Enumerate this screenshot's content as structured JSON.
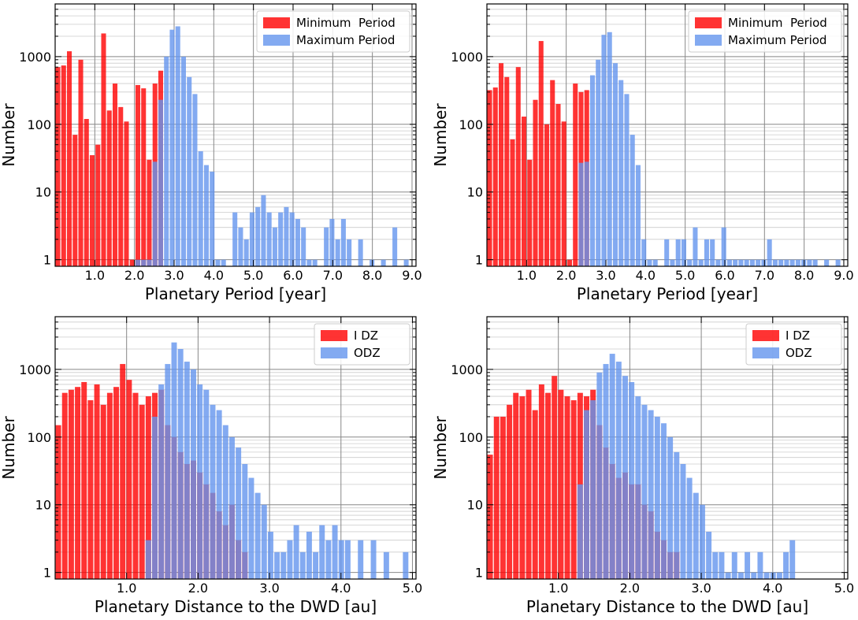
{
  "colors": {
    "red": "#ff0000",
    "blue": "#6495ed",
    "grid": "#888888",
    "minor_grid": "#cccccc"
  },
  "chart_data": [
    {
      "type": "bar",
      "scale": "log",
      "xlabel": "Planetary Period [year]",
      "ylabel": "Number",
      "xlim": [
        0,
        9.1
      ],
      "ylim": [
        0.8,
        6000
      ],
      "xticks": [
        "1.0",
        "2.0",
        "3.0",
        "4.0",
        "5.0",
        "6.0",
        "7.0",
        "8.0",
        "9.0"
      ],
      "yticks": [
        "1",
        "10",
        "100",
        "1000"
      ],
      "legend_position": "top-right",
      "series": [
        {
          "name": "Minimum  Period",
          "color": "red",
          "bin_width": 0.144,
          "x": [
            0.07,
            0.214,
            0.358,
            0.502,
            0.646,
            0.79,
            0.934,
            1.078,
            1.222,
            1.366,
            1.51,
            1.654,
            1.798,
            1.942,
            2.086,
            2.23,
            2.374,
            2.518,
            2.662
          ],
          "values": [
            700,
            740,
            1200,
            70,
            900,
            120,
            35,
            50,
            2200,
            160,
            400,
            180,
            110,
            1,
            380,
            340,
            30,
            400,
            620
          ]
        },
        {
          "name": "Maximum Period",
          "color": "blue",
          "bin_width": 0.144,
          "x": [
            2.086,
            2.23,
            2.374,
            2.518,
            2.662,
            2.806,
            2.95,
            3.094,
            3.238,
            3.382,
            3.526,
            3.67,
            3.814,
            3.958,
            4.102,
            4.246,
            4.534,
            4.678,
            4.822,
            4.966,
            5.11,
            5.254,
            5.398,
            5.542,
            5.686,
            5.83,
            5.974,
            6.118,
            6.262,
            6.406,
            6.55,
            6.838,
            6.982,
            7.126,
            7.27,
            7.414,
            7.702,
            7.99,
            8.278,
            8.566,
            8.854
          ],
          "values": [
            1,
            1,
            1,
            28,
            230,
            1000,
            2500,
            2800,
            1000,
            500,
            280,
            40,
            25,
            20,
            1,
            1,
            5,
            3,
            2,
            5,
            6,
            9,
            5,
            3,
            5,
            6,
            5,
            4,
            3,
            1,
            1,
            3,
            4,
            2,
            4,
            2,
            2,
            1,
            1,
            3,
            1
          ]
        }
      ]
    },
    {
      "type": "bar",
      "scale": "log",
      "xlabel": "Planetary Period [year]",
      "ylabel": "Number",
      "xlim": [
        0,
        9.1
      ],
      "ylim": [
        0.8,
        6000
      ],
      "xticks": [
        "1.0",
        "2.0",
        "3.0",
        "4.0",
        "5.0",
        "6.0",
        "7.0",
        "8.0",
        "9.0"
      ],
      "yticks": [
        "1",
        "10",
        "100",
        "1000"
      ],
      "legend_position": "top-right",
      "series": [
        {
          "name": "Minimum  Period",
          "color": "red",
          "bin_width": 0.144,
          "x": [
            0.07,
            0.214,
            0.358,
            0.502,
            0.646,
            0.79,
            0.934,
            1.078,
            1.222,
            1.366,
            1.51,
            1.654,
            1.798,
            1.942,
            2.086,
            2.23,
            2.374,
            2.518
          ],
          "values": [
            320,
            350,
            800,
            500,
            60,
            700,
            130,
            30,
            230,
            1700,
            100,
            450,
            200,
            110,
            1,
            400,
            300,
            320
          ]
        },
        {
          "name": "Maximum Period",
          "color": "blue",
          "bin_width": 0.144,
          "x": [
            2.374,
            2.518,
            2.662,
            2.806,
            2.95,
            3.094,
            3.238,
            3.382,
            3.526,
            3.67,
            3.814,
            3.958,
            4.102,
            4.246,
            4.534,
            4.678,
            4.822,
            4.966,
            5.11,
            5.254,
            5.398,
            5.542,
            5.686,
            5.83,
            5.974,
            6.118,
            6.262,
            6.406,
            6.55,
            6.694,
            6.838,
            6.982,
            7.126,
            7.27,
            7.414,
            7.558,
            7.702,
            7.846,
            7.99,
            8.134,
            8.278,
            8.566,
            8.854
          ],
          "values": [
            27,
            28,
            530,
            900,
            2100,
            2300,
            800,
            450,
            280,
            70,
            25,
            2,
            1,
            1,
            2,
            1,
            2,
            2,
            1,
            3,
            1,
            2,
            2,
            1,
            3,
            1,
            1,
            1,
            1,
            1,
            1,
            1,
            2,
            1,
            1,
            1,
            1,
            1,
            1,
            1,
            1,
            1,
            1
          ]
        }
      ]
    },
    {
      "type": "bar",
      "scale": "log",
      "xlabel": "Planetary Distance to the DWD [au]",
      "ylabel": "Number",
      "xlim": [
        0,
        5.05
      ],
      "ylim": [
        0.8,
        6000
      ],
      "xticks": [
        "1.0",
        "2.0",
        "3.0",
        "4.0",
        "5.0"
      ],
      "yticks": [
        "1",
        "10",
        "100",
        "1000"
      ],
      "legend_position": "top-right",
      "series": [
        {
          "name": "I DZ",
          "color": "red",
          "bin_width": 0.09,
          "x": [
            0.045,
            0.135,
            0.225,
            0.315,
            0.405,
            0.495,
            0.585,
            0.675,
            0.765,
            0.855,
            0.945,
            1.035,
            1.125,
            1.215,
            1.305,
            1.395,
            1.485,
            1.575,
            1.665,
            1.755,
            1.845,
            1.935,
            2.025,
            2.115,
            2.205,
            2.295,
            2.385,
            2.475,
            2.565,
            2.655
          ],
          "values": [
            150,
            450,
            500,
            550,
            650,
            350,
            600,
            300,
            450,
            550,
            1200,
            700,
            450,
            300,
            400,
            450,
            500,
            150,
            100,
            60,
            40,
            45,
            30,
            20,
            15,
            8,
            5,
            10,
            3,
            2
          ]
        },
        {
          "name": "ODZ",
          "color": "blue",
          "bin_width": 0.09,
          "x": [
            1.305,
            1.395,
            1.485,
            1.575,
            1.665,
            1.755,
            1.845,
            1.935,
            2.025,
            2.115,
            2.205,
            2.295,
            2.385,
            2.475,
            2.565,
            2.655,
            2.745,
            2.835,
            2.925,
            3.015,
            3.105,
            3.195,
            3.285,
            3.375,
            3.465,
            3.555,
            3.645,
            3.735,
            3.825,
            3.915,
            4.005,
            4.095,
            4.275,
            4.455,
            4.635,
            4.905
          ],
          "values": [
            3,
            200,
            600,
            1200,
            2500,
            2000,
            1300,
            1000,
            600,
            500,
            300,
            250,
            150,
            100,
            70,
            40,
            25,
            15,
            10,
            4,
            2,
            2,
            3,
            5,
            2,
            4,
            2,
            5,
            3,
            5,
            3,
            3,
            3,
            3,
            2,
            2
          ]
        }
      ]
    },
    {
      "type": "bar",
      "scale": "log",
      "xlabel": "Planetary Distance to the DWD [au]",
      "ylabel": "Number",
      "xlim": [
        0,
        5.05
      ],
      "ylim": [
        0.8,
        6000
      ],
      "xticks": [
        "1.0",
        "2.0",
        "3.0",
        "4.0",
        "5.0"
      ],
      "yticks": [
        "1",
        "10",
        "100",
        "1000"
      ],
      "legend_position": "top-right",
      "series": [
        {
          "name": "I DZ",
          "color": "red",
          "bin_width": 0.09,
          "x": [
            0.045,
            0.135,
            0.225,
            0.315,
            0.405,
            0.495,
            0.585,
            0.675,
            0.765,
            0.855,
            0.945,
            1.035,
            1.125,
            1.215,
            1.305,
            1.395,
            1.485,
            1.575,
            1.665,
            1.755,
            1.845,
            1.935,
            2.025,
            2.115,
            2.205,
            2.295,
            2.385,
            2.475,
            2.565,
            2.655
          ],
          "values": [
            55,
            200,
            200,
            300,
            450,
            400,
            500,
            250,
            600,
            450,
            800,
            500,
            400,
            350,
            450,
            400,
            500,
            150,
            70,
            40,
            25,
            30,
            20,
            20,
            10,
            8,
            4,
            3,
            2,
            2
          ]
        },
        {
          "name": "ODZ",
          "color": "blue",
          "bin_width": 0.09,
          "x": [
            1.305,
            1.395,
            1.485,
            1.575,
            1.665,
            1.755,
            1.845,
            1.935,
            2.025,
            2.115,
            2.205,
            2.295,
            2.385,
            2.475,
            2.565,
            2.655,
            2.745,
            2.835,
            2.925,
            3.015,
            3.105,
            3.195,
            3.285,
            3.375,
            3.465,
            3.555,
            3.645,
            3.735,
            3.825,
            3.915,
            4.005,
            4.095,
            4.185,
            4.275
          ],
          "values": [
            20,
            250,
            350,
            900,
            1200,
            1700,
            1300,
            800,
            650,
            400,
            300,
            250,
            200,
            160,
            100,
            60,
            40,
            25,
            15,
            10,
            4,
            2,
            2,
            1,
            2,
            1,
            2,
            1,
            2,
            1,
            1,
            1,
            2,
            3
          ]
        }
      ]
    }
  ]
}
